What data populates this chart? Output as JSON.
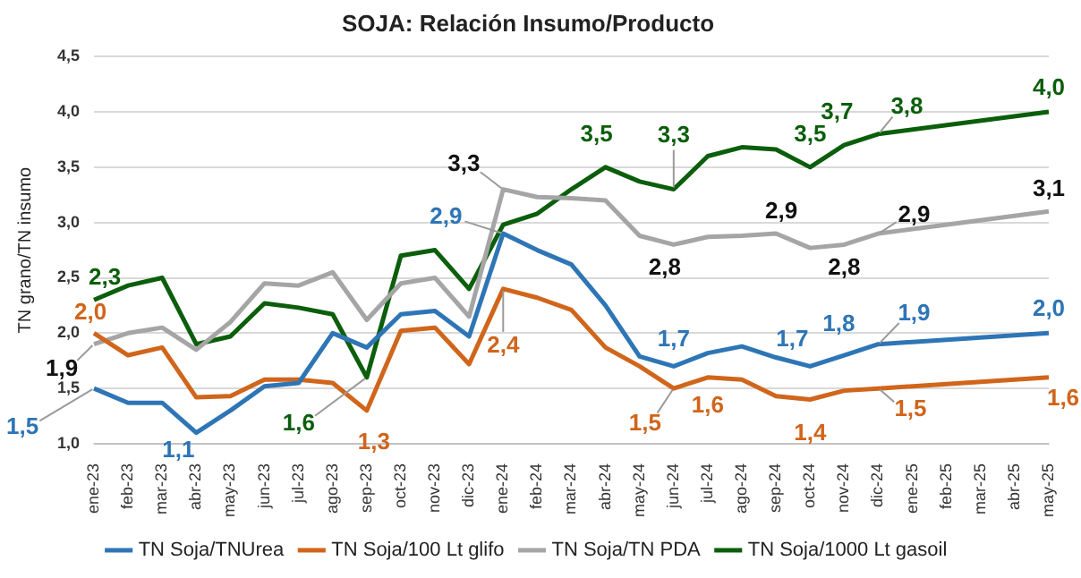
{
  "chart_data": {
    "type": "line",
    "title": "SOJA: Relación Insumo/Producto",
    "ylabel": "TN grano/TN insumo",
    "categories": [
      "ene-23",
      "feb-23",
      "mar-23",
      "abr-23",
      "may-23",
      "jun-23",
      "jul-23",
      "ago-23",
      "sep-23",
      "oct-23",
      "nov-23",
      "dic-23",
      "ene-24",
      "feb-24",
      "mar-24",
      "abr-24",
      "may-24",
      "jun-24",
      "jul-24",
      "ago-24",
      "sep-24",
      "oct-24",
      "nov-24",
      "dic-24",
      "ene-25",
      "feb-25",
      "mar-25",
      "abr-25",
      "may-25"
    ],
    "series": [
      {
        "name": "TN Soja/TNUrea",
        "color": "#2e75b6",
        "values": [
          1.5,
          1.37,
          1.37,
          1.1,
          1.3,
          1.52,
          1.55,
          2.0,
          1.87,
          2.17,
          2.2,
          1.97,
          2.9,
          2.75,
          2.62,
          2.25,
          1.79,
          1.7,
          1.82,
          1.88,
          1.78,
          1.7,
          1.8,
          1.9,
          null,
          null,
          null,
          null,
          2.0
        ]
      },
      {
        "name": "TN Soja/100 Lt glifo",
        "color": "#d0651b",
        "values": [
          2.0,
          1.8,
          1.87,
          1.42,
          1.43,
          1.58,
          1.58,
          1.55,
          1.3,
          2.02,
          2.05,
          1.72,
          2.4,
          2.32,
          2.21,
          1.87,
          1.7,
          1.5,
          1.6,
          1.58,
          1.43,
          1.4,
          1.48,
          1.5,
          null,
          null,
          null,
          null,
          1.6
        ]
      },
      {
        "name": "TN Soja/TN PDA",
        "color": "#a5a5a5",
        "values": [
          1.9,
          2.0,
          2.05,
          1.85,
          2.1,
          2.45,
          2.43,
          2.55,
          2.12,
          2.45,
          2.5,
          2.15,
          3.3,
          3.23,
          3.22,
          3.2,
          2.88,
          2.8,
          2.87,
          2.88,
          2.9,
          2.77,
          2.8,
          2.9,
          null,
          null,
          null,
          null,
          3.1
        ]
      },
      {
        "name": "TN Soja/1000 Lt gasoil",
        "color": "#0b5e0b",
        "values": [
          2.3,
          2.43,
          2.5,
          1.9,
          1.97,
          2.27,
          2.23,
          2.17,
          1.6,
          2.7,
          2.75,
          2.4,
          2.98,
          3.08,
          3.3,
          3.5,
          3.37,
          3.3,
          3.6,
          3.68,
          3.66,
          3.5,
          3.7,
          3.8,
          null,
          null,
          null,
          null,
          4.0
        ]
      }
    ],
    "ylim": [
      1,
      4.5
    ],
    "yticks": [
      {
        "value": 1,
        "label": "1,0"
      },
      {
        "value": 1.5,
        "label": "1,5"
      },
      {
        "value": 2,
        "label": "2,0"
      },
      {
        "value": 2.5,
        "label": "2,5"
      },
      {
        "value": 3,
        "label": "3,0"
      },
      {
        "value": 3.5,
        "label": "3,5"
      },
      {
        "value": 4,
        "label": "4,0"
      },
      {
        "value": 4.5,
        "label": "4,5"
      }
    ],
    "grid": "y",
    "legend": "bottom",
    "marker": "none",
    "line_style": "solid",
    "annotations": [
      {
        "text": "2,3",
        "x": "ene-23",
        "y": 2.3
      },
      {
        "text": "1,6",
        "x": "sep-23",
        "y": 1.6
      },
      {
        "text": "3,5",
        "x": "abr-24",
        "y": 3.5
      },
      {
        "text": "3,3",
        "x": "jun-24",
        "y": 3.3
      },
      {
        "text": "3,5",
        "x": "oct-24",
        "y": 3.5
      },
      {
        "text": "3,7",
        "x": "nov-24",
        "y": 3.7
      },
      {
        "text": "3,8",
        "x": "dic-24",
        "y": 3.8
      },
      {
        "text": "4,0",
        "x": "may-25",
        "y": 4.0
      },
      {
        "text": "1,9",
        "x": "ene-23",
        "y": 1.9
      },
      {
        "text": "3,3",
        "x": "ene-24",
        "y": 3.3
      },
      {
        "text": "2,8",
        "x": "jun-24",
        "y": 2.8
      },
      {
        "text": "2,9",
        "x": "sep-24",
        "y": 2.9
      },
      {
        "text": "2,8",
        "x": "nov-24",
        "y": 2.8
      },
      {
        "text": "2,9",
        "x": "dic-24",
        "y": 2.9
      },
      {
        "text": "3,1",
        "x": "may-25",
        "y": 3.1
      },
      {
        "text": "1,5",
        "x": "ene-23",
        "y": 1.5
      },
      {
        "text": "1,1",
        "x": "abr-23",
        "y": 1.1
      },
      {
        "text": "2,9",
        "x": "ene-24",
        "y": 2.9
      },
      {
        "text": "1,7",
        "x": "jun-24",
        "y": 1.7
      },
      {
        "text": "1,7",
        "x": "oct-24",
        "y": 1.7
      },
      {
        "text": "1,8",
        "x": "nov-24",
        "y": 1.8
      },
      {
        "text": "1,9",
        "x": "dic-24",
        "y": 1.9
      },
      {
        "text": "2,0",
        "x": "may-25",
        "y": 2.0
      },
      {
        "text": "2,0",
        "x": "ene-23",
        "y": 2.0
      },
      {
        "text": "1,3",
        "x": "sep-23",
        "y": 1.3
      },
      {
        "text": "2,4",
        "x": "ene-24",
        "y": 2.4
      },
      {
        "text": "1,5",
        "x": "jun-24",
        "y": 1.5
      },
      {
        "text": "1,6",
        "x": "jul-24",
        "y": 1.6
      },
      {
        "text": "1,4",
        "x": "oct-24",
        "y": 1.4
      },
      {
        "text": "1,5",
        "x": "dic-24",
        "y": 1.5
      },
      {
        "text": "1,6",
        "x": "may-25",
        "y": 1.6
      }
    ]
  }
}
